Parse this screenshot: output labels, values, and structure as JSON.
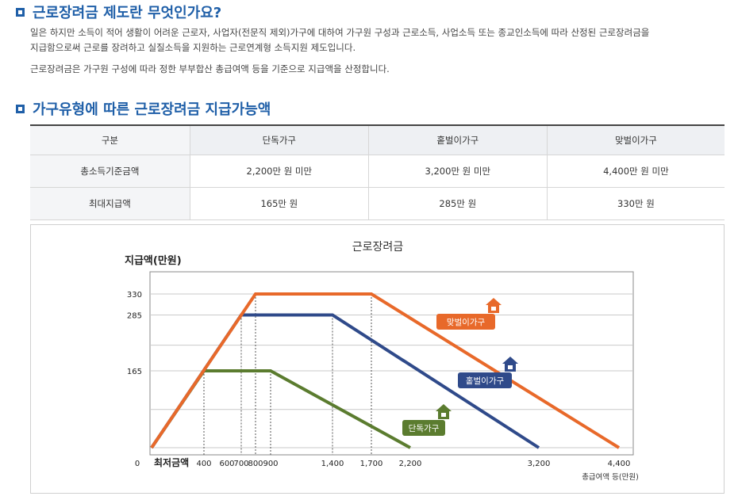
{
  "section1": {
    "title": "근로장려금 제도란 무엇인가요?",
    "para1_line1": "일은 하지만 소득이 적어 생활이 어려운 근로자, 사업자(전문직 제외)가구에 대하여 가구원 구성과 근로소득, 사업소득 또는 종교인소득에 따라 산정된 근로장려금을",
    "para1_line2": "지급함으로써 근로를 장려하고 실질소득을 지원하는 근로연계형 소득지원 제도입니다.",
    "para2": "근로장려금은 가구원 구성에 따라 정한 부부합산 총급여액 등을 기준으로 지급액을 산정합니다."
  },
  "section2": {
    "title": "가구유형에 따른 근로장려금 지급가능액"
  },
  "table": {
    "headers": [
      "구분",
      "단독가구",
      "홑벌이가구",
      "맞벌이가구"
    ],
    "rows": [
      [
        "총소득기준금액",
        "2,200만 원 미만",
        "3,200만 원 미만",
        "4,400만 원 미만"
      ],
      [
        "최대지급액",
        "165만 원",
        "285만 원",
        "330만 원"
      ]
    ]
  },
  "colors": {
    "accent": "#1f5fa8",
    "single": "#5b7c2f",
    "single_earner": "#2f4a8a",
    "dual_earner": "#e8692a"
  },
  "chart_data": {
    "type": "line",
    "title": "근로장려금",
    "ylabel": "지급액(만원)",
    "xlabel": "총급여액 등(만원)",
    "x_ticks": [
      "0",
      "400",
      "600",
      "700",
      "800",
      "900",
      "1,400",
      "1,700",
      "2,200",
      "3,200",
      "4,400"
    ],
    "x_tick_values": [
      0,
      400,
      600,
      700,
      800,
      900,
      1400,
      1700,
      2200,
      3200,
      4400
    ],
    "x_min_label": "최저금액",
    "y_ticks": [
      165,
      285,
      330
    ],
    "xlim": [
      0,
      4400
    ],
    "ylim": [
      0,
      330
    ],
    "series": [
      {
        "name": "단독가구",
        "color": "#5b7c2f",
        "points": [
          [
            0,
            0
          ],
          [
            400,
            165
          ],
          [
            900,
            165
          ],
          [
            2200,
            0
          ]
        ]
      },
      {
        "name": "홑벌이가구",
        "color": "#2f4a8a",
        "points": [
          [
            0,
            0
          ],
          [
            700,
            285
          ],
          [
            1400,
            285
          ],
          [
            3200,
            0
          ]
        ]
      },
      {
        "name": "맞벌이가구",
        "color": "#e8692a",
        "points": [
          [
            0,
            0
          ],
          [
            800,
            330
          ],
          [
            1700,
            330
          ],
          [
            4400,
            0
          ]
        ]
      }
    ]
  }
}
